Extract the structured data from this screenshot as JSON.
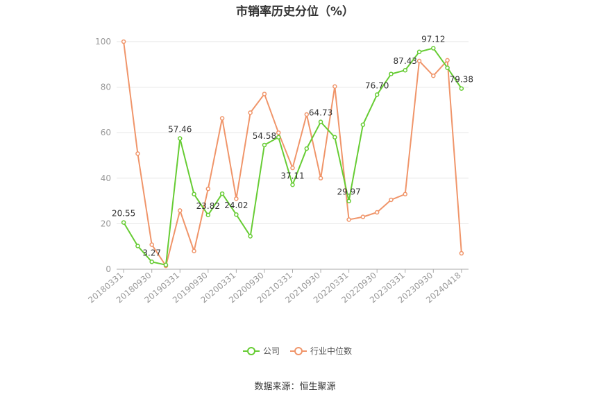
{
  "chart_data": {
    "type": "line",
    "title": "市销率历史分位（%）",
    "source": "数据来源：恒生聚源",
    "ylim": [
      0,
      100
    ],
    "yticks": [
      0,
      20,
      40,
      60,
      80,
      100
    ],
    "x": [
      "20180331",
      "20180630",
      "20180930",
      "20181231",
      "20190331",
      "20190630",
      "20190930",
      "20191231",
      "20200331",
      "20200630",
      "20200930",
      "20201231",
      "20210331",
      "20210630",
      "20210930",
      "20211231",
      "20220331",
      "20220630",
      "20220930",
      "20221231",
      "20230331",
      "20230630",
      "20230930",
      "20231231",
      "20240418"
    ],
    "xtick_labels": [
      "20180331",
      "20180930",
      "20190331",
      "20190930",
      "20200331",
      "20200930",
      "20210331",
      "20210930",
      "20220331",
      "20220930",
      "20230331",
      "20230930",
      "20240418"
    ],
    "grid": true,
    "legend_position": "bottom",
    "series": [
      {
        "name": "公司",
        "color": "#66cc33",
        "values": [
          20.55,
          10.2,
          3.27,
          1.9,
          57.46,
          33.0,
          23.82,
          33.2,
          24.02,
          14.5,
          54.58,
          58.0,
          37.11,
          53.0,
          64.73,
          58.0,
          29.97,
          63.5,
          76.7,
          85.8,
          87.43,
          95.5,
          97.12,
          88.5,
          79.38
        ],
        "labels": {
          "0": "20.55",
          "2": "3.27",
          "4": "57.46",
          "6": "23.82",
          "8": "24.02",
          "10": "54.58",
          "12": "37.11",
          "14": "64.73",
          "16": "29.97",
          "18": "76.70",
          "20": "87.43",
          "22": "97.12",
          "24": "79.38"
        }
      },
      {
        "name": "行业中位数",
        "color": "#f0956a",
        "values": [
          100,
          50.8,
          10.8,
          1.5,
          25.8,
          8.0,
          35.3,
          66.3,
          31.0,
          68.8,
          77.0,
          60.0,
          44.5,
          68.0,
          40.0,
          80.3,
          21.8,
          23.0,
          25.0,
          30.5,
          33.0,
          91.5,
          85.0,
          91.8,
          7.0
        ]
      }
    ]
  }
}
